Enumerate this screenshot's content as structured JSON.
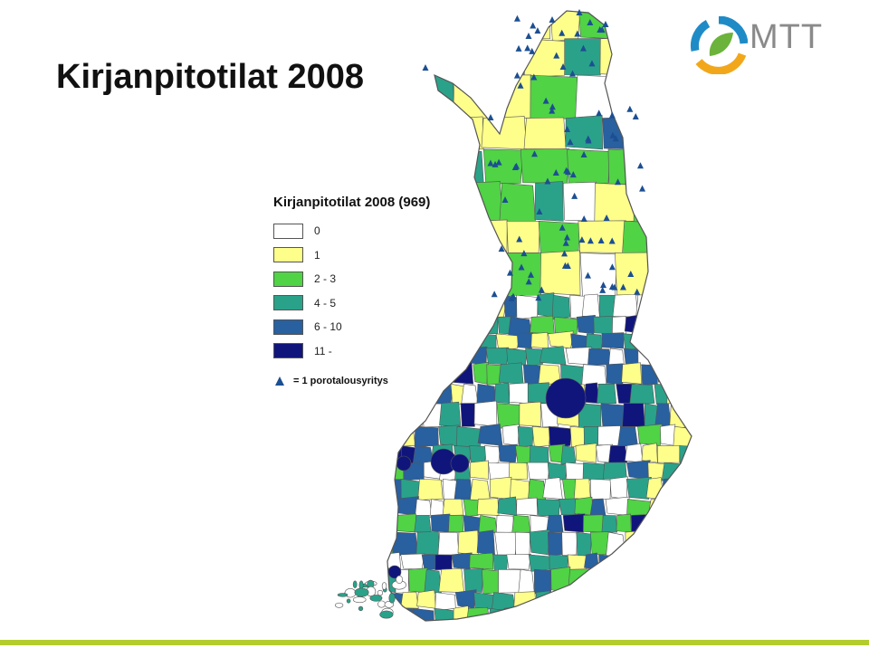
{
  "slide": {
    "title": "Kirjanpitotilat 2008"
  },
  "logo": {
    "text": "MTT",
    "colors": {
      "ring_blue": "#1f8bc6",
      "ring_orange": "#f2a71b",
      "leaf_green": "#6bb33b",
      "text": "#8a8a8a"
    }
  },
  "legend": {
    "title": "Kirjanpitotilat 2008 (969)",
    "classes": [
      {
        "label": "0",
        "color": "#ffffff"
      },
      {
        "label": "1",
        "color": "#fefe8a"
      },
      {
        "label": "2 - 3",
        "color": "#50d345"
      },
      {
        "label": "4 - 5",
        "color": "#2aa28a"
      },
      {
        "label": "6 - 10",
        "color": "#2860a0"
      },
      {
        "label": "11 -",
        "color": "#10157c"
      }
    ],
    "symbol": {
      "icon": "triangle-icon",
      "label": "= 1 porotalousyritys",
      "color": "#1c4f92"
    }
  },
  "map": {
    "region": "Finland",
    "boundary_color": "#555555"
  },
  "theme": {
    "bottom_bar": "#b5cc2e"
  }
}
